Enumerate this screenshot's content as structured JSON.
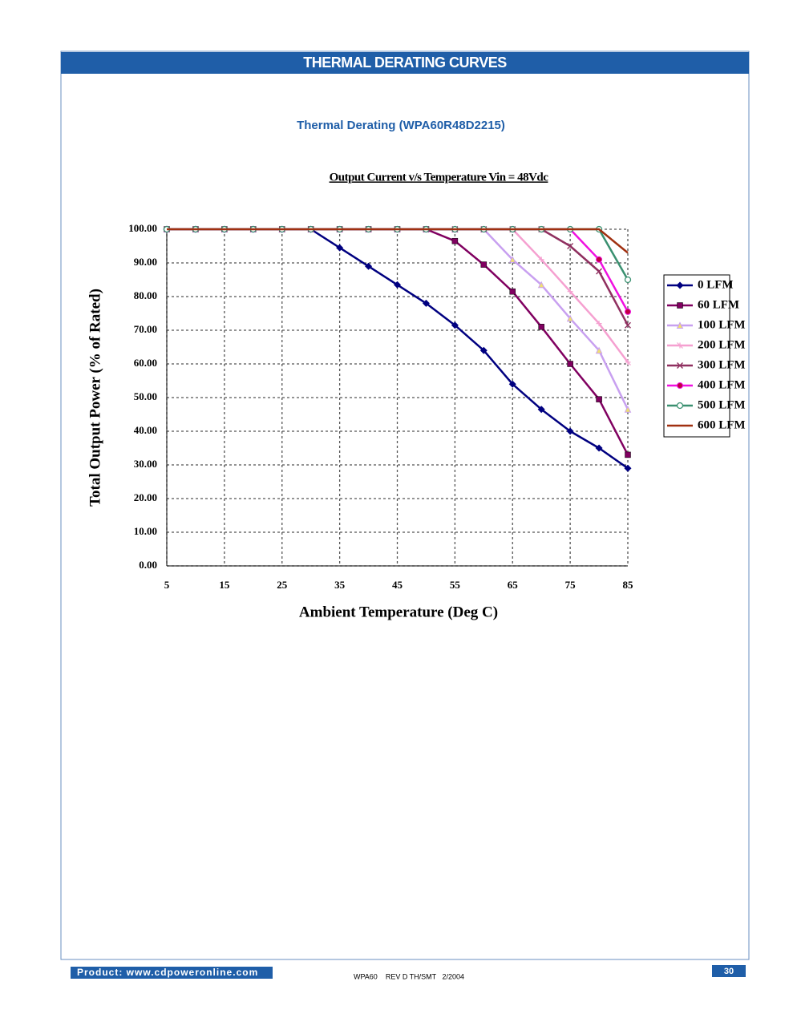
{
  "header": {
    "title": "THERMAL DERATING CURVES"
  },
  "chart_data": {
    "type": "line",
    "title": "Thermal Derating (WPA60R48D2215)",
    "subtitle": "Output Current v/s Temperature Vin = 48Vdc",
    "x_label": "Ambient Temperature (Deg C)",
    "y_label": "Total Output Power (% of Rated)",
    "x": [
      5,
      10,
      15,
      20,
      25,
      30,
      35,
      40,
      45,
      50,
      55,
      60,
      65,
      70,
      75,
      80,
      85
    ],
    "xlim": [
      5,
      85
    ],
    "xticks": [
      5,
      15,
      25,
      35,
      45,
      55,
      65,
      75,
      85
    ],
    "ylim": [
      0,
      100
    ],
    "yticks": [
      {
        "value": 0,
        "label": "0.00"
      },
      {
        "value": 10,
        "label": "10.00"
      },
      {
        "value": 20,
        "label": "20.00"
      },
      {
        "value": 30,
        "label": "30.00"
      },
      {
        "value": 40,
        "label": "40.00"
      },
      {
        "value": 50,
        "label": "50.00"
      },
      {
        "value": 60,
        "label": "60.00"
      },
      {
        "value": 70,
        "label": "70.00"
      },
      {
        "value": 80,
        "label": "80.00"
      },
      {
        "value": 90,
        "label": "90.00"
      },
      {
        "value": 100,
        "label": "100.00"
      }
    ],
    "grid": true,
    "legend": "right",
    "series": [
      {
        "name": "0 LFM",
        "color": "#000080",
        "marker": "diamond",
        "values": [
          100,
          100,
          100,
          100,
          100,
          100,
          94.5,
          89,
          83.5,
          78,
          71.5,
          64,
          54,
          46.5,
          40,
          35,
          29
        ]
      },
      {
        "name": "60 LFM",
        "color": "#800060",
        "marker": "square",
        "values": [
          100,
          100,
          100,
          100,
          100,
          100,
          100,
          100,
          100,
          100,
          96.5,
          89.5,
          81.5,
          71,
          60,
          49.5,
          33
        ]
      },
      {
        "name": "100 LFM",
        "color": "#c8a0f0",
        "marker": "triangle",
        "values": [
          100,
          100,
          100,
          100,
          100,
          100,
          100,
          100,
          100,
          100,
          100,
          100,
          91,
          83.5,
          73.5,
          64,
          46.5
        ]
      },
      {
        "name": "200 LFM",
        "color": "#f5a0d0",
        "marker": "cross",
        "values": [
          100,
          100,
          100,
          100,
          100,
          100,
          100,
          100,
          100,
          100,
          100,
          100,
          100,
          91,
          81.5,
          72,
          60.5
        ]
      },
      {
        "name": "300 LFM",
        "color": "#903060",
        "marker": "x",
        "values": [
          100,
          100,
          100,
          100,
          100,
          100,
          100,
          100,
          100,
          100,
          100,
          100,
          100,
          100,
          95,
          87.5,
          71.5
        ]
      },
      {
        "name": "400 LFM",
        "color": "#f010e0",
        "marker": "circle",
        "values": [
          100,
          100,
          100,
          100,
          100,
          100,
          100,
          100,
          100,
          100,
          100,
          100,
          100,
          100,
          100,
          91,
          75.5
        ]
      },
      {
        "name": "500 LFM",
        "color": "#3a9070",
        "marker": "ring",
        "values": [
          100,
          100,
          100,
          100,
          100,
          100,
          100,
          100,
          100,
          100,
          100,
          100,
          100,
          100,
          100,
          100,
          85
        ]
      },
      {
        "name": "600 LFM",
        "color": "#a03010",
        "marker": "none",
        "values": [
          100,
          100,
          100,
          100,
          100,
          100,
          100,
          100,
          100,
          100,
          100,
          100,
          100,
          100,
          100,
          100,
          93
        ]
      }
    ]
  },
  "footer": {
    "product": "Product: www.cdpoweronline.com",
    "revision": "WPA60    REV D TH/SMT   2/2004",
    "page": "30"
  }
}
